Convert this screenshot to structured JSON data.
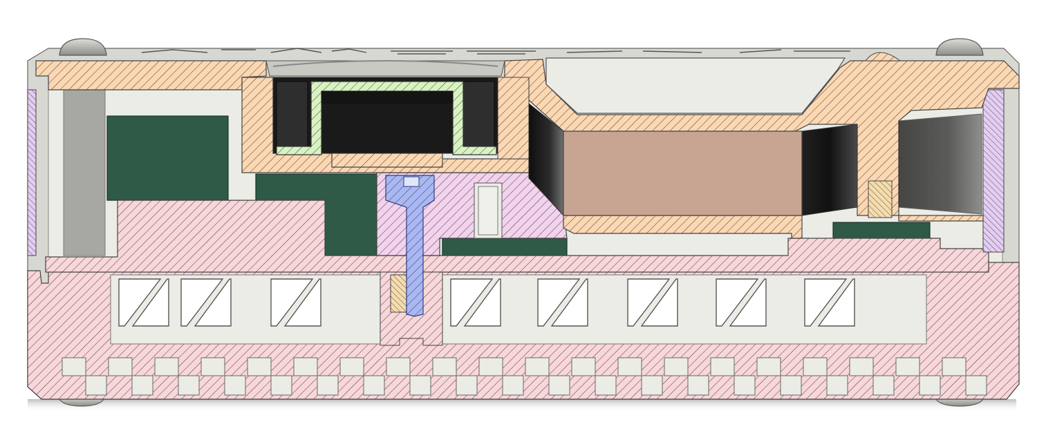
{
  "view": "cad-cross-section",
  "colors": {
    "background": "#ffffff",
    "shell_grey": "#d8d8d2",
    "shell_grey_dark": "#a8a8a2",
    "shell_grey_light": "#ecece6",
    "top_cover_orange": "#fbd7b2",
    "bottom_base_pink": "#f8d6d9",
    "mid_bracket_pink": "#f2d2ec",
    "side_caps_violet": "#e4cdf2",
    "gasket_green": "#d8f2c2",
    "screw_blue": "#a9b8f4",
    "brass_insert": "#f5dcae",
    "battery_tan": "#c8a592",
    "pcb_green": "#2f5a48",
    "hatch_stroke": "#2a2a2a",
    "cavity_black": "#1e1e1e",
    "rubber_foot": "#b9b9b4"
  },
  "parts": [
    {
      "id": "top-cover",
      "hatched": true
    },
    {
      "id": "bottom-base",
      "hatched": true
    },
    {
      "id": "mid-bracket",
      "hatched": true
    },
    {
      "id": "side-cap-left",
      "hatched": true
    },
    {
      "id": "side-cap-right",
      "hatched": true
    },
    {
      "id": "sensor-gasket",
      "hatched": true
    },
    {
      "id": "screw",
      "hatched": true
    },
    {
      "id": "threaded-insert-left",
      "hatched": true
    },
    {
      "id": "threaded-insert-right",
      "hatched": true
    },
    {
      "id": "battery",
      "hatched": false
    },
    {
      "id": "pcb",
      "hatched": false
    },
    {
      "id": "rubber-foot",
      "count": 4
    }
  ]
}
